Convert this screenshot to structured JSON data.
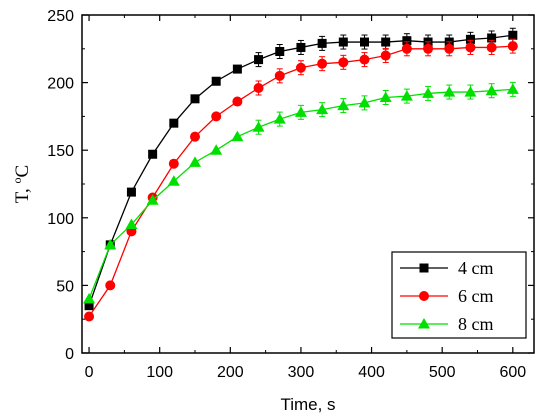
{
  "chart_data": {
    "type": "line",
    "title": "",
    "xlabel": "Time, s",
    "ylabel": "T, °C",
    "ylabel_main": "T, ",
    "ylabel_sup": "o",
    "ylabel_unit": "C",
    "xlim": [
      -10,
      630
    ],
    "ylim": [
      0,
      250
    ],
    "xticks": [
      0,
      100,
      200,
      300,
      400,
      500,
      600
    ],
    "yticks": [
      0,
      50,
      100,
      150,
      200,
      250
    ],
    "grid": false,
    "legend_position": "bottom-right",
    "x": [
      0,
      30,
      60,
      90,
      120,
      150,
      180,
      210,
      240,
      270,
      300,
      330,
      360,
      390,
      420,
      450,
      480,
      510,
      540,
      570,
      600
    ],
    "series": [
      {
        "name": "4 cm",
        "color": "#000000",
        "marker": "square",
        "values": [
          35,
          80,
          119,
          147,
          170,
          188,
          201,
          210,
          217,
          223,
          226,
          229,
          230,
          230,
          230,
          231,
          230,
          230,
          232,
          233,
          235
        ]
      },
      {
        "name": "6 cm",
        "color": "#ff0000",
        "marker": "circle",
        "values": [
          27,
          50,
          90,
          115,
          140,
          160,
          175,
          186,
          196,
          205,
          211,
          214,
          215,
          217,
          220,
          225,
          225,
          225,
          226,
          226,
          227
        ]
      },
      {
        "name": "8 cm",
        "color": "#00e000",
        "marker": "triangle",
        "values": [
          40,
          80,
          95,
          113,
          127,
          141,
          150,
          160,
          167,
          173,
          178,
          180,
          183,
          185,
          189,
          190,
          192,
          193,
          193,
          194,
          195
        ]
      }
    ]
  }
}
